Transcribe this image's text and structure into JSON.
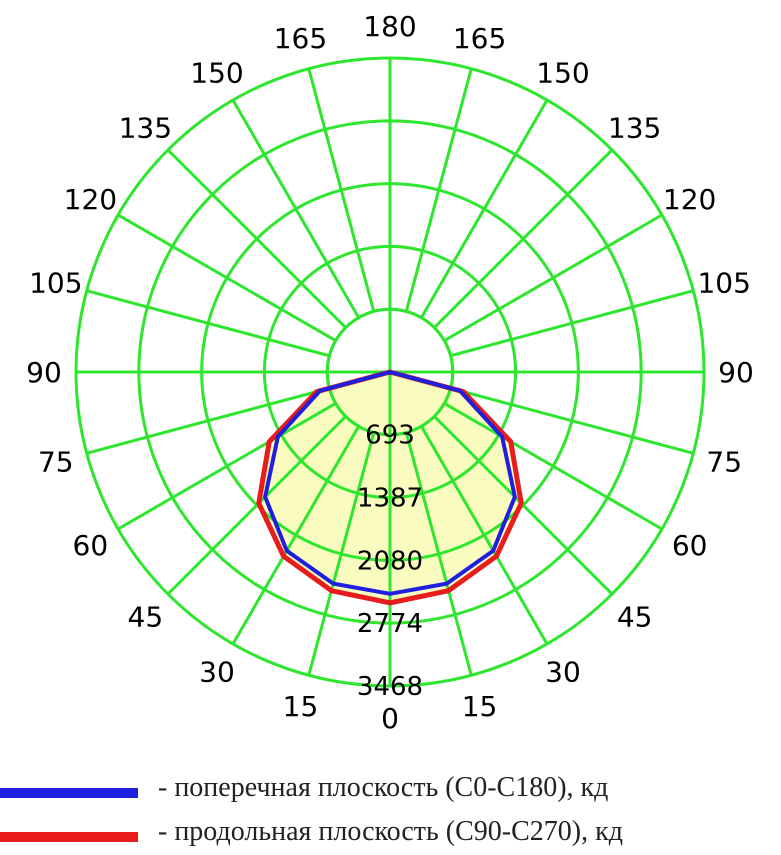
{
  "chart_data": {
    "type": "polar",
    "colors": {
      "grid": "#2ee62e",
      "fill": "#fafbbf",
      "transverse": "#1f1fe0",
      "longitudinal": "#e81c1c"
    },
    "rings": [
      693,
      1387,
      2080,
      2774,
      3468
    ],
    "ring_labels": [
      "693",
      "1387",
      "2080",
      "2774",
      "3468"
    ],
    "r_max": 3468,
    "angle_labels": {
      "top": "180",
      "bottom": "0",
      "left": [
        "165",
        "150",
        "135",
        "120",
        "105",
        "90",
        "75",
        "60",
        "45",
        "30",
        "15"
      ],
      "right": [
        "165",
        "150",
        "135",
        "120",
        "105",
        "90",
        "75",
        "60",
        "45",
        "30",
        "15"
      ]
    },
    "angles": [
      0,
      15,
      30,
      45,
      60,
      75,
      90
    ],
    "series": [
      {
        "name": "поперечная плоскость (C0-C180), кд",
        "color": "#1f1fe0",
        "values": [
          2450,
          2420,
          2280,
          1950,
          1430,
          800,
          0
        ]
      },
      {
        "name": "продольная плоскость (C90-C270), кд",
        "color": "#e81c1c",
        "values": [
          2550,
          2500,
          2350,
          2050,
          1540,
          840,
          0
        ]
      }
    ]
  },
  "legend": {
    "items": [
      {
        "text": "- поперечная плоскость (C0-C180), кд",
        "color": "#1f1fe0"
      },
      {
        "text": "- продольная плоскость (C90-C270), кд",
        "color": "#e81c1c"
      }
    ]
  }
}
